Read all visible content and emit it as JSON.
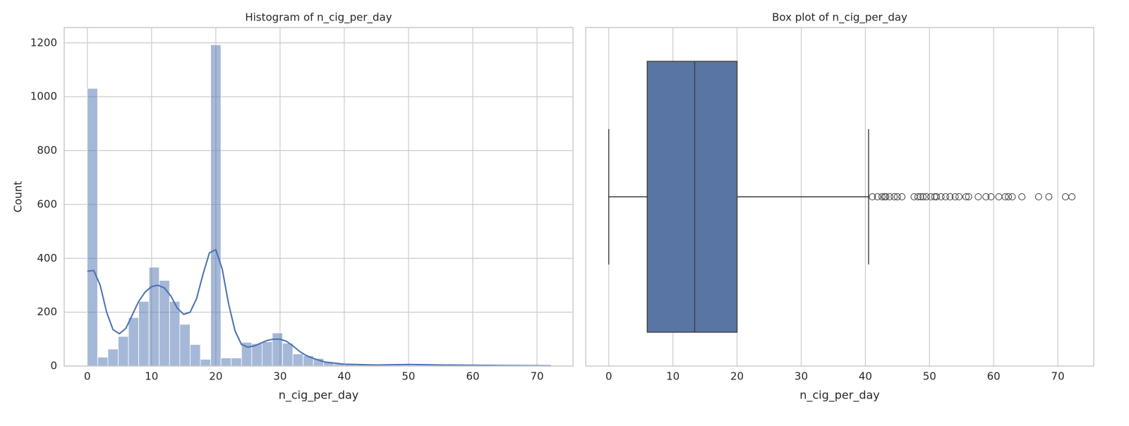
{
  "chart_data": [
    {
      "type": "histogram",
      "title": "Histogram of n_cig_per_day",
      "xlabel": "n_cig_per_day",
      "ylabel": "Count",
      "bins": [
        0,
        1.6,
        3.2,
        4.8,
        6.4,
        8,
        9.6,
        11.2,
        12.8,
        14.4,
        16,
        17.6,
        19.2,
        20.8,
        22.4,
        24,
        25.6,
        27.2,
        28.8,
        30.4,
        32,
        33.6,
        35.2,
        36.8,
        38.4,
        40,
        41.6,
        43.2,
        44.8,
        46.4,
        48,
        49.6,
        51.2,
        52.8,
        54.4,
        56,
        57.6,
        59.2,
        60.8,
        62.4,
        64,
        65.6,
        67.2,
        68.8,
        70.4,
        72
      ],
      "values": [
        1031,
        33,
        63,
        110,
        180,
        240,
        367,
        318,
        240,
        155,
        80,
        25,
        1193,
        30,
        30,
        88,
        83,
        90,
        123,
        85,
        45,
        38,
        28,
        15,
        8,
        5,
        4,
        3,
        2,
        2,
        3,
        2,
        2,
        1,
        2,
        2,
        1,
        1,
        1,
        1,
        1,
        1,
        1,
        1,
        2
      ],
      "color": "#4c72b0",
      "kde_x": [
        0,
        1,
        2,
        3,
        4,
        5,
        6,
        7,
        8,
        9,
        10,
        11,
        12,
        13,
        14,
        15,
        16,
        17,
        18,
        19,
        20,
        21,
        22,
        23,
        24,
        25,
        26,
        27,
        28,
        29,
        30,
        31,
        32,
        33,
        34,
        35,
        36,
        37,
        40,
        45,
        50,
        55,
        60,
        65,
        72.2
      ],
      "kde_values": [
        352,
        355,
        300,
        200,
        135,
        120,
        140,
        190,
        240,
        275,
        295,
        300,
        290,
        260,
        215,
        192,
        200,
        250,
        340,
        420,
        432,
        360,
        230,
        130,
        80,
        70,
        75,
        85,
        95,
        100,
        100,
        92,
        75,
        55,
        40,
        30,
        22,
        15,
        7,
        4,
        6,
        4,
        3,
        2,
        1
      ],
      "xlim": [
        -3.6,
        75.6
      ],
      "ylim": [
        0,
        1257
      ],
      "xticks": [
        0,
        10,
        20,
        30,
        40,
        50,
        60,
        70
      ],
      "yticks": [
        0,
        200,
        400,
        600,
        800,
        1000,
        1200
      ],
      "grid": true
    },
    {
      "type": "box",
      "title": "Box plot of n_cig_per_day",
      "xlabel": "n_cig_per_day",
      "min": 0,
      "q1": 6,
      "median": 13.4,
      "q3": 20,
      "max": 40.5,
      "outliers": [
        41.1,
        41.9,
        42.6,
        43,
        43.2,
        43.8,
        44.5,
        45,
        45.7,
        47.6,
        48.2,
        48.6,
        49,
        49.5,
        50.2,
        50.8,
        51.1,
        51.8,
        52.5,
        53.2,
        54,
        54.6,
        55.7,
        56.1,
        57.6,
        58.8,
        59.6,
        60.8,
        61.8,
        62.3,
        62.9,
        64.4,
        67,
        68.6,
        71.2,
        72.2
      ],
      "color": "#5975a4",
      "xlim": [
        -3.6,
        75.6
      ],
      "xticks": [
        0,
        10,
        20,
        30,
        40,
        50,
        60,
        70
      ],
      "grid": true
    }
  ]
}
